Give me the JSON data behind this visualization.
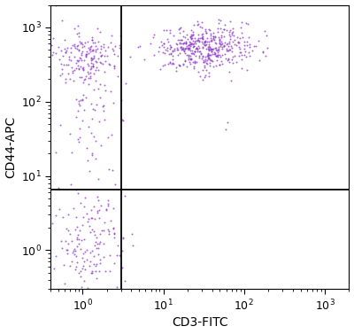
{
  "xlabel": "CD3-FITC",
  "ylabel": "CD44-APC",
  "xlim_log": [
    0.4,
    2000
  ],
  "ylim_log": [
    0.3,
    2000
  ],
  "dot_color": "#8B35C8",
  "dot_alpha": 0.75,
  "dot_size": 2.0,
  "gate_x": 3.0,
  "gate_y": 6.5,
  "background_color": "#ffffff",
  "seed": 42,
  "clusters": [
    {
      "name": "upper_left_core",
      "n": 160,
      "x_log_mean": 0.05,
      "x_log_std": 0.22,
      "y_log_mean": 2.6,
      "y_log_std": 0.18
    },
    {
      "name": "upper_left_tail",
      "n": 80,
      "x_log_mean": 0.1,
      "x_log_std": 0.18,
      "y_log_mean": 2.0,
      "y_log_std": 0.45
    },
    {
      "name": "upper_right",
      "n": 450,
      "x_log_mean": 1.5,
      "x_log_std": 0.3,
      "y_log_mean": 2.72,
      "y_log_std": 0.15
    },
    {
      "name": "lower_left",
      "n": 160,
      "x_log_mean": 0.05,
      "x_log_std": 0.22,
      "y_log_mean": 0.1,
      "y_log_std": 0.38
    },
    {
      "name": "lower_right_sparse",
      "n": 2,
      "x_log_mean": 1.7,
      "x_log_std": 0.2,
      "y_log_mean": 1.5,
      "y_log_std": 0.2
    }
  ]
}
